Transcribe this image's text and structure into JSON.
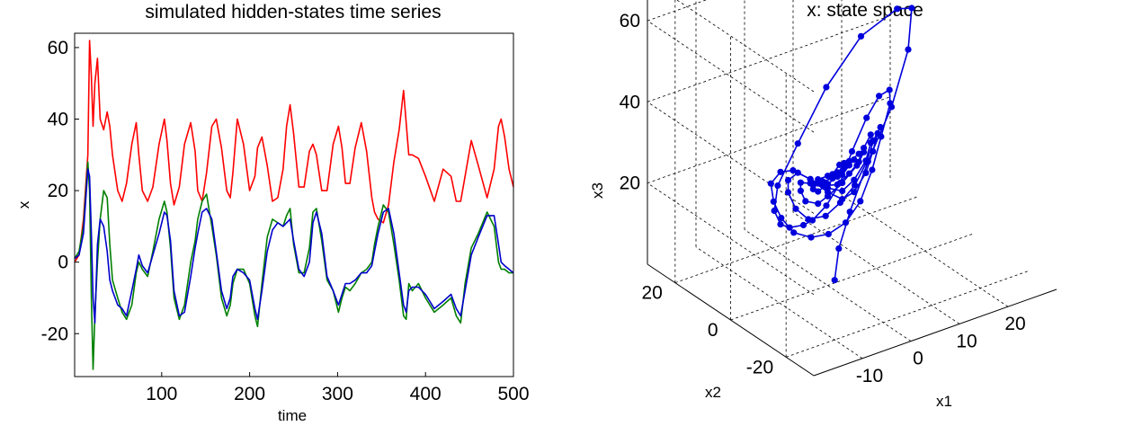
{
  "chart_data": [
    {
      "type": "line",
      "title": "simulated hidden-states time series",
      "xlabel": "time",
      "ylabel": "x",
      "xlim": [
        1,
        500
      ],
      "ylim": [
        -32,
        64
      ],
      "xticks": [
        100,
        200,
        300,
        400,
        500
      ],
      "yticks": [
        -20,
        0,
        20,
        40,
        60
      ],
      "grid": false,
      "x": [
        1,
        6,
        11,
        16,
        18,
        20,
        22,
        24,
        27,
        30,
        34,
        38,
        41,
        44,
        50,
        55,
        60,
        66,
        71,
        74,
        78,
        84,
        90,
        97,
        103,
        106,
        110,
        114,
        120,
        126,
        133,
        138,
        141,
        146,
        151,
        157,
        162,
        168,
        174,
        178,
        181,
        186,
        193,
        200,
        206,
        209,
        214,
        220,
        226,
        232,
        238,
        242,
        246,
        250,
        256,
        262,
        268,
        272,
        276,
        282,
        288,
        295,
        301,
        305,
        309,
        314,
        320,
        327,
        333,
        339,
        342,
        346,
        352,
        358,
        364,
        370,
        375,
        378,
        381,
        385,
        392,
        400,
        410,
        420,
        429,
        435,
        440,
        445,
        452,
        460,
        470,
        478,
        483,
        486,
        490,
        495,
        500
      ],
      "series": [
        {
          "color": "#ff0000",
          "values": [
            0,
            2,
            12,
            30,
            62,
            52,
            38,
            50,
            57,
            40,
            37,
            42,
            38,
            30,
            20,
            17,
            22,
            33,
            39,
            30,
            20,
            17,
            21,
            33,
            40,
            34,
            22,
            16,
            21,
            33,
            39,
            31,
            20,
            17,
            25,
            38,
            40,
            32,
            20,
            18,
            25,
            40,
            33,
            20,
            24,
            32,
            35,
            27,
            17,
            18,
            26,
            38,
            44,
            36,
            21,
            21,
            31,
            33,
            30,
            20,
            20,
            33,
            38,
            32,
            22,
            22,
            32,
            39,
            31,
            18,
            14,
            12,
            11,
            16,
            28,
            37,
            48,
            39,
            30,
            30,
            29,
            24,
            17,
            26,
            24,
            17,
            17,
            24,
            34,
            27,
            18,
            26,
            38,
            40,
            35,
            26,
            21
          ]
        },
        {
          "color": "#008000",
          "values": [
            1,
            3,
            10,
            28,
            20,
            -10,
            -30,
            -15,
            0,
            12,
            20,
            18,
            5,
            -5,
            -10,
            -14,
            -16,
            -12,
            -3,
            0,
            -2,
            -4,
            3,
            12,
            17,
            14,
            4,
            -10,
            -16,
            -12,
            0,
            6,
            12,
            17,
            19,
            10,
            2,
            -10,
            -15,
            -12,
            -6,
            -2,
            -2,
            -6,
            -15,
            -18,
            -6,
            7,
            12,
            11,
            10,
            13,
            15,
            5,
            -3,
            -3,
            4,
            14,
            15,
            6,
            -5,
            -8,
            -14,
            -10,
            -7,
            -8,
            -6,
            -3,
            -2,
            0,
            5,
            10,
            16,
            14,
            5,
            -5,
            -15,
            -16,
            -6,
            -8,
            -6,
            -10,
            -14,
            -12,
            -10,
            -15,
            -17,
            -6,
            4,
            8,
            14,
            10,
            0,
            -2,
            -2,
            -3,
            -3
          ]
        },
        {
          "color": "#0000cc",
          "values": [
            1,
            2,
            8,
            26,
            24,
            8,
            -10,
            -17,
            5,
            12,
            10,
            3,
            -5,
            -8,
            -12,
            -13,
            -15,
            -8,
            -2,
            2,
            -1,
            -3,
            2,
            8,
            14,
            13,
            6,
            -8,
            -15,
            -14,
            -4,
            4,
            8,
            14,
            15,
            12,
            3,
            -8,
            -13,
            -10,
            -4,
            -2,
            -3,
            -5,
            -13,
            -16,
            -8,
            3,
            9,
            11,
            10,
            11,
            12,
            6,
            -2,
            -4,
            0,
            11,
            14,
            8,
            -4,
            -8,
            -12,
            -9,
            -6,
            -6,
            -5,
            -3,
            -3,
            -1,
            3,
            8,
            14,
            15,
            8,
            -3,
            -12,
            -14,
            -8,
            -7,
            -7,
            -9,
            -13,
            -11,
            -9,
            -13,
            -15,
            -8,
            2,
            7,
            13,
            13,
            5,
            0,
            -1,
            -2,
            -3
          ]
        }
      ]
    },
    {
      "type": "scatter",
      "title": "x: state space",
      "xlabel": "x1",
      "ylabel": "x2",
      "zlabel": "x3",
      "x1_ticks": [
        -10,
        0,
        10,
        20
      ],
      "x2_ticks": [
        -20,
        0,
        20
      ],
      "x3_ticks": [
        20,
        40,
        60
      ],
      "grid": true,
      "marker": "filled circle",
      "color": "#0000dd",
      "points": [
        [
          2,
          1,
          0
        ],
        [
          4,
          3,
          6
        ],
        [
          8,
          6,
          12
        ],
        [
          14,
          10,
          20
        ],
        [
          20,
          12,
          30
        ],
        [
          24,
          13,
          42
        ],
        [
          23,
          10,
          54
        ],
        [
          16,
          3,
          60
        ],
        [
          4,
          -5,
          62
        ],
        [
          -6,
          -10,
          56
        ],
        [
          -13,
          -12,
          46
        ],
        [
          -16,
          -10,
          36
        ],
        [
          -15,
          -7,
          28
        ],
        [
          -12,
          -4,
          22
        ],
        [
          -9,
          -2,
          19
        ],
        [
          -5,
          0,
          17
        ],
        [
          -2,
          2,
          16
        ],
        [
          2,
          4,
          17
        ],
        [
          6,
          6,
          20
        ],
        [
          9,
          7,
          26
        ],
        [
          12,
          7,
          33
        ],
        [
          14,
          6,
          38
        ],
        [
          15,
          4,
          40
        ],
        [
          14,
          2,
          38
        ],
        [
          11,
          0,
          32
        ],
        [
          8,
          -2,
          26
        ],
        [
          5,
          -3,
          20
        ],
        [
          2,
          -3,
          16
        ],
        [
          -1,
          -2,
          14
        ],
        [
          -4,
          -1,
          14
        ],
        [
          -7,
          0,
          16
        ],
        [
          -9,
          1,
          20
        ],
        [
          -10,
          2,
          24
        ],
        [
          -10,
          3,
          28
        ],
        [
          -8,
          3,
          30
        ],
        [
          -6,
          2,
          30
        ],
        [
          -3,
          1,
          27
        ],
        [
          0,
          0,
          23
        ],
        [
          3,
          0,
          20
        ],
        [
          6,
          1,
          20
        ],
        [
          9,
          2,
          23
        ],
        [
          11,
          3,
          27
        ],
        [
          12,
          3,
          31
        ],
        [
          12,
          2,
          33
        ],
        [
          10,
          1,
          31
        ],
        [
          8,
          0,
          27
        ],
        [
          5,
          -1,
          23
        ],
        [
          2,
          -1,
          20
        ],
        [
          -1,
          -1,
          18
        ],
        [
          -4,
          0,
          18
        ],
        [
          -6,
          1,
          21
        ],
        [
          -7,
          2,
          25
        ],
        [
          -7,
          2,
          28
        ],
        [
          -5,
          2,
          29
        ],
        [
          -3,
          1,
          27
        ],
        [
          0,
          0,
          24
        ],
        [
          3,
          0,
          22
        ],
        [
          6,
          1,
          23
        ],
        [
          9,
          2,
          26
        ],
        [
          10,
          2,
          30
        ],
        [
          10,
          2,
          32
        ],
        [
          8,
          1,
          30
        ],
        [
          6,
          0,
          27
        ],
        [
          3,
          0,
          24
        ],
        [
          0,
          0,
          22
        ],
        [
          -2,
          0,
          21
        ],
        [
          -4,
          1,
          22
        ],
        [
          -5,
          1,
          25
        ],
        [
          -5,
          1,
          27
        ],
        [
          -3,
          1,
          26
        ],
        [
          -1,
          0,
          25
        ],
        [
          2,
          0,
          24
        ],
        [
          5,
          1,
          25
        ],
        [
          7,
          1,
          27
        ],
        [
          8,
          1,
          29
        ],
        [
          7,
          1,
          29
        ],
        [
          5,
          1,
          28
        ],
        [
          2,
          0,
          26
        ],
        [
          0,
          0,
          25
        ],
        [
          -2,
          0,
          24
        ],
        [
          -3,
          0,
          25
        ],
        [
          -3,
          0,
          26
        ],
        [
          -1,
          0,
          26
        ],
        [
          1,
          0,
          26
        ],
        [
          3,
          0,
          26
        ],
        [
          5,
          1,
          27
        ],
        [
          6,
          1,
          28
        ],
        [
          5,
          1,
          28
        ],
        [
          3,
          0,
          27
        ],
        [
          1,
          0,
          26
        ],
        [
          -1,
          0,
          26
        ],
        [
          -2,
          0,
          26
        ],
        [
          -2,
          0,
          27
        ],
        [
          0,
          0,
          27
        ],
        [
          2,
          0,
          27
        ],
        [
          4,
          1,
          27
        ],
        [
          4,
          1,
          28
        ],
        [
          3,
          1,
          28
        ],
        [
          1,
          0,
          27
        ]
      ]
    }
  ]
}
